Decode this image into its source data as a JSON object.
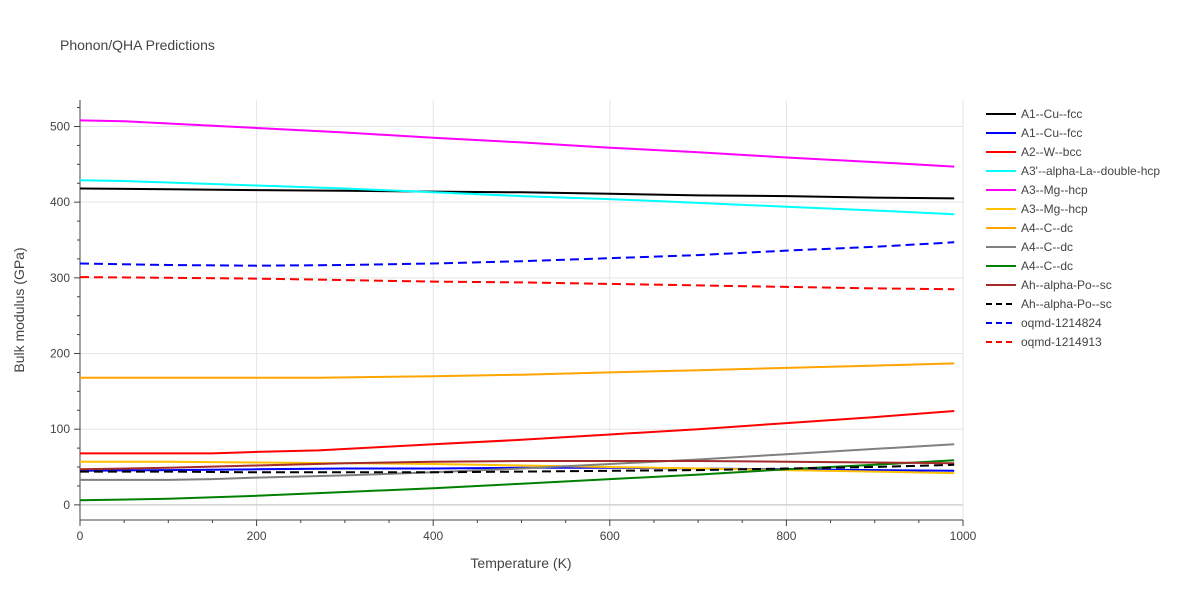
{
  "chart_data": {
    "type": "line",
    "title": "Phonon/QHA Predictions",
    "xlabel": "Temperature (K)",
    "ylabel": "Bulk modulus (GPa)",
    "xlim": [
      0,
      1000
    ],
    "ylim": [
      -20,
      535
    ],
    "x_ticks": [
      0,
      200,
      400,
      600,
      800,
      1000
    ],
    "y_ticks": [
      0,
      100,
      200,
      300,
      400,
      500
    ],
    "grid": true,
    "legend_position": "right",
    "series": [
      {
        "name": "A1--Cu--fcc",
        "color": "#000000",
        "dash": "solid",
        "x": [
          0,
          100,
          200,
          300,
          400,
          500,
          600,
          700,
          800,
          900,
          990
        ],
        "y": [
          418,
          417,
          416,
          415,
          414,
          413,
          411,
          409,
          408,
          406,
          405
        ]
      },
      {
        "name": "A1--Cu--fcc",
        "color": "#0000ff",
        "dash": "solid",
        "x": [
          0,
          100,
          200,
          300,
          400,
          500,
          600,
          700,
          800,
          900,
          990
        ],
        "y": [
          45,
          46,
          47,
          48,
          48,
          49,
          49,
          48,
          47,
          46,
          45
        ]
      },
      {
        "name": "A2--W--bcc",
        "color": "#ff0000",
        "dash": "solid",
        "x": [
          0,
          100,
          150,
          200,
          270,
          350,
          400,
          500,
          600,
          700,
          800,
          900,
          990
        ],
        "y": [
          68,
          68,
          68,
          70,
          72,
          77,
          80,
          86,
          93,
          100,
          108,
          116,
          124
        ]
      },
      {
        "name": "A3'--alpha-La--double-hcp",
        "color": "#00ffff",
        "dash": "solid",
        "x": [
          0,
          50,
          100,
          200,
          300,
          400,
          500,
          600,
          700,
          800,
          900,
          990
        ],
        "y": [
          429,
          428,
          426,
          422,
          418,
          413,
          408,
          404,
          399,
          394,
          389,
          384
        ]
      },
      {
        "name": "A3--Mg--hcp",
        "color": "#ff00ff",
        "dash": "solid",
        "x": [
          0,
          50,
          100,
          200,
          300,
          400,
          500,
          600,
          700,
          800,
          900,
          990
        ],
        "y": [
          508,
          507,
          504,
          498,
          492,
          485,
          479,
          472,
          466,
          459,
          453,
          447
        ]
      },
      {
        "name": "A3--Mg--hcp",
        "color": "#ffc000",
        "dash": "solid",
        "x": [
          0,
          100,
          200,
          300,
          400,
          500,
          600,
          700,
          800,
          900,
          990
        ],
        "y": [
          57,
          57,
          56,
          55,
          54,
          52,
          50,
          48,
          46,
          44,
          42
        ]
      },
      {
        "name": "A4--C--dc",
        "color": "#ffa500",
        "dash": "solid",
        "x": [
          0,
          100,
          200,
          270,
          400,
          500,
          600,
          700,
          800,
          900,
          990
        ],
        "y": [
          168,
          168,
          168,
          168,
          170,
          172,
          175,
          178,
          181,
          184,
          187
        ]
      },
      {
        "name": "A4--C--dc",
        "color": "#808080",
        "dash": "solid",
        "x": [
          0,
          100,
          150,
          200,
          300,
          400,
          500,
          600,
          700,
          800,
          900,
          990
        ],
        "y": [
          33,
          33,
          34,
          36,
          39,
          43,
          48,
          54,
          60,
          67,
          74,
          80
        ]
      },
      {
        "name": "A4--C--dc",
        "color": "#008000",
        "dash": "solid",
        "x": [
          0,
          100,
          200,
          300,
          400,
          500,
          600,
          700,
          800,
          900,
          990
        ],
        "y": [
          6,
          8,
          12,
          17,
          22,
          28,
          34,
          40,
          47,
          53,
          59
        ]
      },
      {
        "name": "Ah--alpha-Po--sc",
        "color": "#a52a2a",
        "dash": "solid",
        "x": [
          0,
          100,
          200,
          300,
          400,
          500,
          600,
          700,
          800,
          900,
          990
        ],
        "y": [
          47,
          49,
          52,
          55,
          57,
          58,
          58,
          58,
          57,
          56,
          55
        ]
      },
      {
        "name": "Ah--alpha-Po--sc",
        "color": "#000000",
        "dash": "dash",
        "x": [
          0,
          100,
          200,
          300,
          400,
          500,
          600,
          700,
          800,
          900,
          990
        ],
        "y": [
          44,
          44,
          43,
          43,
          43,
          44,
          45,
          46,
          48,
          50,
          53
        ]
      },
      {
        "name": "oqmd-1214824",
        "color": "#0000ff",
        "dash": "dash",
        "x": [
          0,
          100,
          200,
          300,
          400,
          500,
          600,
          700,
          800,
          900,
          990
        ],
        "y": [
          319,
          317,
          316,
          317,
          319,
          322,
          326,
          330,
          336,
          341,
          347
        ]
      },
      {
        "name": "oqmd-1214913",
        "color": "#ff0000",
        "dash": "dash",
        "x": [
          0,
          100,
          200,
          300,
          400,
          500,
          600,
          700,
          800,
          900,
          990
        ],
        "y": [
          301,
          300,
          299,
          297,
          295,
          294,
          292,
          290,
          288,
          286,
          285
        ]
      }
    ]
  }
}
